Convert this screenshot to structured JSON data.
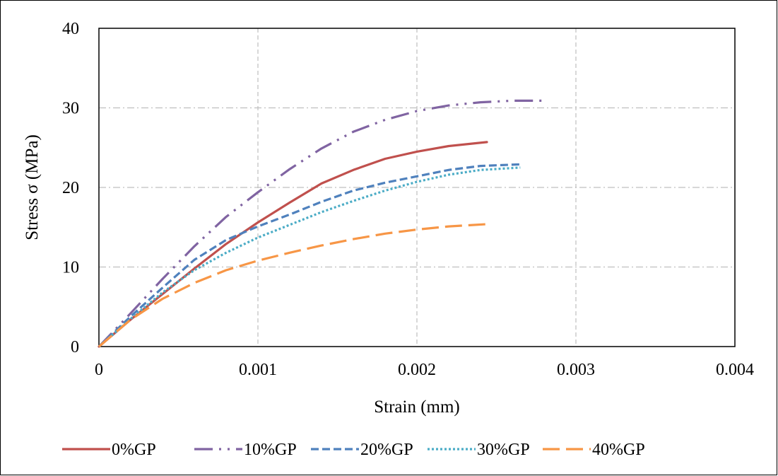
{
  "chart_data": {
    "type": "line",
    "title": "",
    "xlabel": "Strain (mm)",
    "ylabel": "Stress σ (MPa)",
    "xlim": [
      0,
      0.004
    ],
    "ylim": [
      0,
      40
    ],
    "x_ticks": [
      0,
      0.001,
      0.002,
      0.003,
      0.004
    ],
    "x_tick_labels": [
      "0",
      "0.001",
      "0.002",
      "0.003",
      "0.004"
    ],
    "y_ticks": [
      0,
      10,
      20,
      30,
      40
    ],
    "y_tick_labels": [
      "0",
      "10",
      "20",
      "30",
      "40"
    ],
    "grid": true,
    "legend_position": "bottom",
    "series": [
      {
        "name": "0%GP",
        "color": "#C0504D",
        "dash": "solid",
        "points": [
          [
            0,
            0
          ],
          [
            0.0002,
            3.4
          ],
          [
            0.0004,
            6.6
          ],
          [
            0.0006,
            9.8
          ],
          [
            0.0008,
            12.9
          ],
          [
            0.001,
            15.6
          ],
          [
            0.0012,
            18.1
          ],
          [
            0.0014,
            20.5
          ],
          [
            0.0016,
            22.2
          ],
          [
            0.0018,
            23.6
          ],
          [
            0.002,
            24.5
          ],
          [
            0.0022,
            25.2
          ],
          [
            0.00244,
            25.7
          ]
        ]
      },
      {
        "name": "10%GP",
        "color": "#8064A2",
        "dash": "long-dash-dot-dot",
        "points": [
          [
            0,
            0
          ],
          [
            0.0002,
            4.2
          ],
          [
            0.0004,
            8.5
          ],
          [
            0.0006,
            12.6
          ],
          [
            0.0008,
            16.3
          ],
          [
            0.001,
            19.4
          ],
          [
            0.0012,
            22.3
          ],
          [
            0.0014,
            24.9
          ],
          [
            0.0016,
            27.0
          ],
          [
            0.0018,
            28.5
          ],
          [
            0.002,
            29.6
          ],
          [
            0.0022,
            30.3
          ],
          [
            0.0024,
            30.7
          ],
          [
            0.0026,
            30.9
          ],
          [
            0.0028,
            30.9
          ]
        ]
      },
      {
        "name": "20%GP",
        "color": "#4F81BD",
        "dash": "dash",
        "points": [
          [
            0,
            0
          ],
          [
            0.0002,
            3.8
          ],
          [
            0.0004,
            7.4
          ],
          [
            0.0006,
            10.9
          ],
          [
            0.0008,
            13.4
          ],
          [
            0.001,
            15.1
          ],
          [
            0.0012,
            16.6
          ],
          [
            0.0014,
            18.2
          ],
          [
            0.0016,
            19.6
          ],
          [
            0.0018,
            20.6
          ],
          [
            0.002,
            21.4
          ],
          [
            0.0022,
            22.2
          ],
          [
            0.0024,
            22.7
          ],
          [
            0.00265,
            22.9
          ]
        ]
      },
      {
        "name": "30%GP",
        "color": "#4BACC6",
        "dash": "dot",
        "points": [
          [
            0,
            0
          ],
          [
            0.0002,
            3.5
          ],
          [
            0.0004,
            6.8
          ],
          [
            0.0006,
            9.6
          ],
          [
            0.0008,
            11.8
          ],
          [
            0.001,
            13.7
          ],
          [
            0.0012,
            15.3
          ],
          [
            0.0014,
            16.9
          ],
          [
            0.0016,
            18.3
          ],
          [
            0.0018,
            19.6
          ],
          [
            0.002,
            20.7
          ],
          [
            0.0022,
            21.6
          ],
          [
            0.0024,
            22.2
          ],
          [
            0.00265,
            22.5
          ]
        ]
      },
      {
        "name": "40%GP",
        "color": "#F79646",
        "dash": "long-dash",
        "points": [
          [
            0,
            0
          ],
          [
            0.0002,
            3.4
          ],
          [
            0.0004,
            6.0
          ],
          [
            0.0006,
            8.0
          ],
          [
            0.0008,
            9.6
          ],
          [
            0.001,
            10.8
          ],
          [
            0.0012,
            11.8
          ],
          [
            0.0014,
            12.7
          ],
          [
            0.0016,
            13.5
          ],
          [
            0.0018,
            14.2
          ],
          [
            0.002,
            14.7
          ],
          [
            0.0022,
            15.1
          ],
          [
            0.00245,
            15.4
          ]
        ]
      }
    ]
  }
}
